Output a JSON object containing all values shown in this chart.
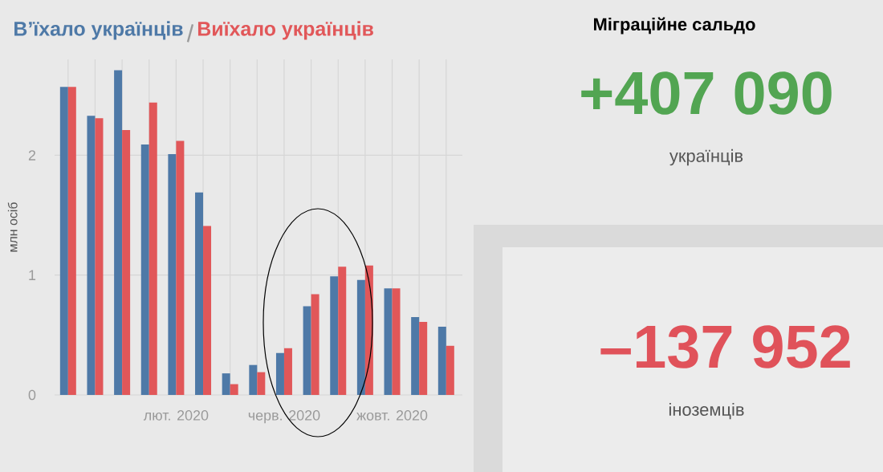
{
  "chart_data": [
    {
      "type": "bar",
      "ylabel": "млн осіб",
      "legend": "top left",
      "grid": true,
      "categories": [
        null,
        null,
        null,
        null,
        "лют. 2020",
        null,
        null,
        null,
        "черв. 2020",
        null,
        null,
        null,
        "жовт. 2020",
        null,
        null
      ],
      "ylim": [
        0,
        2.8
      ],
      "yticks": [
        0,
        1,
        2
      ],
      "series": [
        {
          "name": "В’їхало українців",
          "color": "#4e79a7",
          "values": [
            2.57,
            2.33,
            2.71,
            2.09,
            2.01,
            1.69,
            0.18,
            0.25,
            0.35,
            0.74,
            0.99,
            0.96,
            0.89,
            0.65,
            0.57
          ]
        },
        {
          "name": "Виїхало українців",
          "color": "#e15759",
          "values": [
            2.57,
            2.31,
            2.21,
            2.44,
            2.12,
            1.41,
            0.09,
            0.19,
            0.39,
            0.84,
            1.07,
            1.08,
            0.89,
            0.61,
            0.41
          ]
        }
      ]
    },
    {
      "type": "other",
      "title": "Міграційне сальдо",
      "annotations": [
        "+407 090",
        "українців",
        "–137 952",
        "іноземців"
      ]
    }
  ]
}
